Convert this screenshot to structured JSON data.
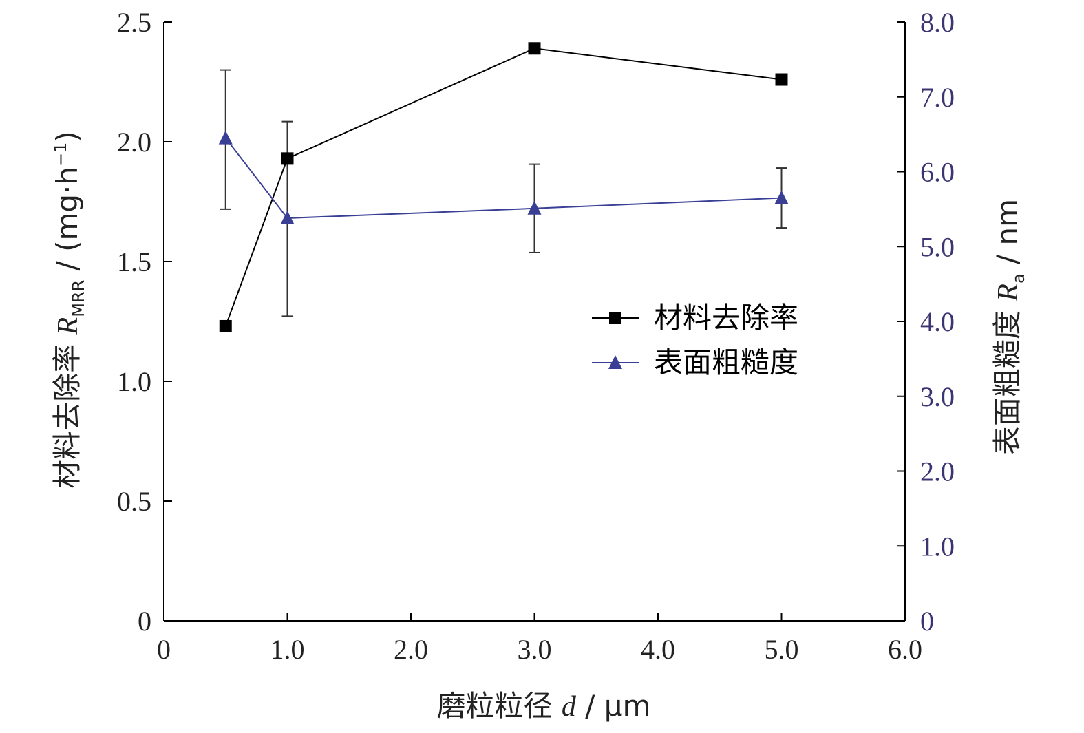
{
  "colors": {
    "axis": "#000000",
    "left_axis_text": "#222222",
    "right_axis_text": "#3b3574",
    "mrr_series": "#000000",
    "ra_series": "#3a3f96",
    "error_bar": "#333333"
  },
  "chart_data": {
    "type": "line",
    "xlabel": {
      "prefix": "磨粒粒径 ",
      "var": "d",
      "suffix": " / μm"
    },
    "ylabel_left": {
      "prefix": "材料去除率 ",
      "var": "R",
      "sub": "MRR",
      "unit": " / (mg·h",
      "sup": "−1",
      "close": ")"
    },
    "ylabel_right": {
      "prefix": "表面粗糙度 ",
      "var": "R",
      "sub": "a",
      "unit": " / nm"
    },
    "xlim": [
      0,
      6
    ],
    "ylim_left": [
      0,
      2.5
    ],
    "ylim_right": [
      0,
      8
    ],
    "x_ticks": [
      "0",
      "1.0",
      "2.0",
      "3.0",
      "4.0",
      "5.0",
      "6.0"
    ],
    "y_left_ticks": [
      "0",
      "0.5",
      "1.0",
      "1.5",
      "2.0",
      "2.5"
    ],
    "y_right_ticks": [
      "0",
      "1.0",
      "2.0",
      "3.0",
      "4.0",
      "5.0",
      "6.0",
      "7.0",
      "8.0"
    ],
    "legend_position": "center-right",
    "series": [
      {
        "name": "材料去除率",
        "axis": "left",
        "marker": "square",
        "x": [
          0.5,
          1.0,
          3.0,
          5.0
        ],
        "y": [
          1.23,
          1.93,
          2.39,
          2.26
        ]
      },
      {
        "name": "表面粗糙度",
        "axis": "right",
        "marker": "triangle",
        "x": [
          0.5,
          1.0,
          3.0,
          5.0
        ],
        "y": [
          6.45,
          5.38,
          5.51,
          5.65
        ],
        "error_low": [
          5.5,
          4.07,
          4.92,
          5.25
        ],
        "error_high": [
          7.36,
          6.67,
          6.1,
          6.05
        ]
      }
    ]
  }
}
